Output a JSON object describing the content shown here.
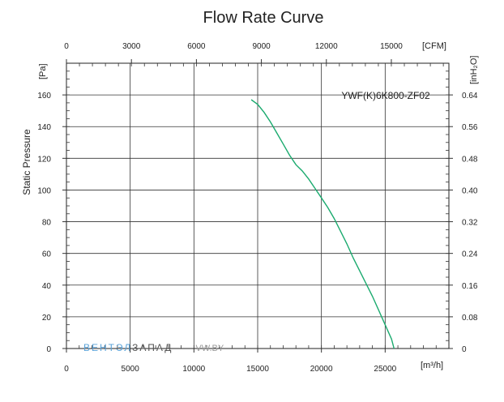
{
  "chart_data": {
    "type": "line",
    "title": "Flow Rate Curve",
    "ylabel": "Static Pressure",
    "model": "YWF(K)6K800-ZF02",
    "axes": {
      "bottom": {
        "unit": "[m³/h]",
        "min": 0,
        "max": 30000,
        "ticks": [
          0,
          5000,
          10000,
          15000,
          20000,
          25000
        ],
        "tick_labels": [
          "0",
          "5000",
          "10000",
          "15000",
          "20000",
          "25000"
        ]
      },
      "top": {
        "unit": "[CFM]",
        "min": 0,
        "max": 17657,
        "ticks": [
          0,
          3000,
          6000,
          9000,
          12000,
          15000
        ],
        "tick_labels": [
          "0",
          "3000",
          "6000",
          "9000",
          "12000",
          "15000"
        ]
      },
      "left": {
        "unit": "[Pa]",
        "min": 0,
        "max": 180,
        "ticks": [
          0,
          20,
          40,
          60,
          80,
          100,
          120,
          140,
          160
        ],
        "tick_labels": [
          "0",
          "20",
          "40",
          "60",
          "80",
          "100",
          "120",
          "140",
          "160"
        ]
      },
      "right": {
        "unit": "[inH₂O]",
        "min": 0,
        "max": 0.72,
        "ticks": [
          0,
          0.08,
          0.16,
          0.24,
          0.32,
          0.4,
          0.48,
          0.56,
          0.64
        ],
        "tick_labels": [
          "0",
          "0.08",
          "0.16",
          "0.24",
          "0.32",
          "0.40",
          "0.48",
          "0.56",
          "0.64"
        ]
      }
    },
    "grid": true,
    "series": [
      {
        "name": "YWF(K)6K800-ZF02",
        "color": "#1aaa6e",
        "points": [
          [
            14500,
            157
          ],
          [
            15000,
            154
          ],
          [
            15500,
            149
          ],
          [
            16000,
            143
          ],
          [
            16500,
            136
          ],
          [
            17000,
            129
          ],
          [
            17500,
            122
          ],
          [
            18000,
            116
          ],
          [
            18500,
            112
          ],
          [
            19000,
            107
          ],
          [
            19500,
            101
          ],
          [
            20000,
            95
          ],
          [
            20500,
            89
          ],
          [
            21000,
            82
          ],
          [
            21500,
            74
          ],
          [
            22000,
            66
          ],
          [
            22500,
            57
          ],
          [
            23000,
            49
          ],
          [
            23500,
            41
          ],
          [
            24000,
            33
          ],
          [
            24500,
            24
          ],
          [
            25000,
            15
          ],
          [
            25500,
            6
          ],
          [
            25700,
            0
          ]
        ]
      }
    ]
  },
  "watermark": {
    "part1": "ВЕНТЭЛ",
    "part2": "ЗАПАД",
    "part3": "VW.BY",
    "color1": "#5ba3d9",
    "color2": "#555555",
    "color3": "#9a9a9a"
  }
}
